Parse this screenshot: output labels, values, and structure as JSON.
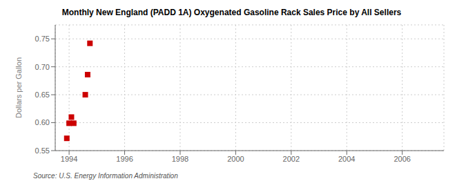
{
  "chart_data": {
    "type": "scatter",
    "title": "Monthly New England (PADD 1A) Oxygenated Gasoline Rack Sales Price by All Sellers",
    "ylabel": "Dollars per Gallon",
    "annotations": [
      "Source: U.S. Energy Information Administration"
    ],
    "x": [
      1993.917,
      1994.0,
      1994.083,
      1994.167,
      1994.583,
      1994.667,
      1994.75
    ],
    "values": [
      0.572,
      0.599,
      0.61,
      0.599,
      0.65,
      0.686,
      0.742
    ],
    "color": "#cc0000",
    "marker": "square",
    "xlim": [
      1993.5,
      2007.5
    ],
    "ylim": [
      0.55,
      0.775
    ],
    "xticks": [
      1994,
      1996,
      1998,
      2000,
      2002,
      2004,
      2006
    ],
    "yticks": [
      0.55,
      {
        "value": 0.6,
        "label": "0.60"
      },
      0.65,
      {
        "value": 0.7,
        "label": "0.70"
      },
      0.75
    ],
    "grid": true
  }
}
